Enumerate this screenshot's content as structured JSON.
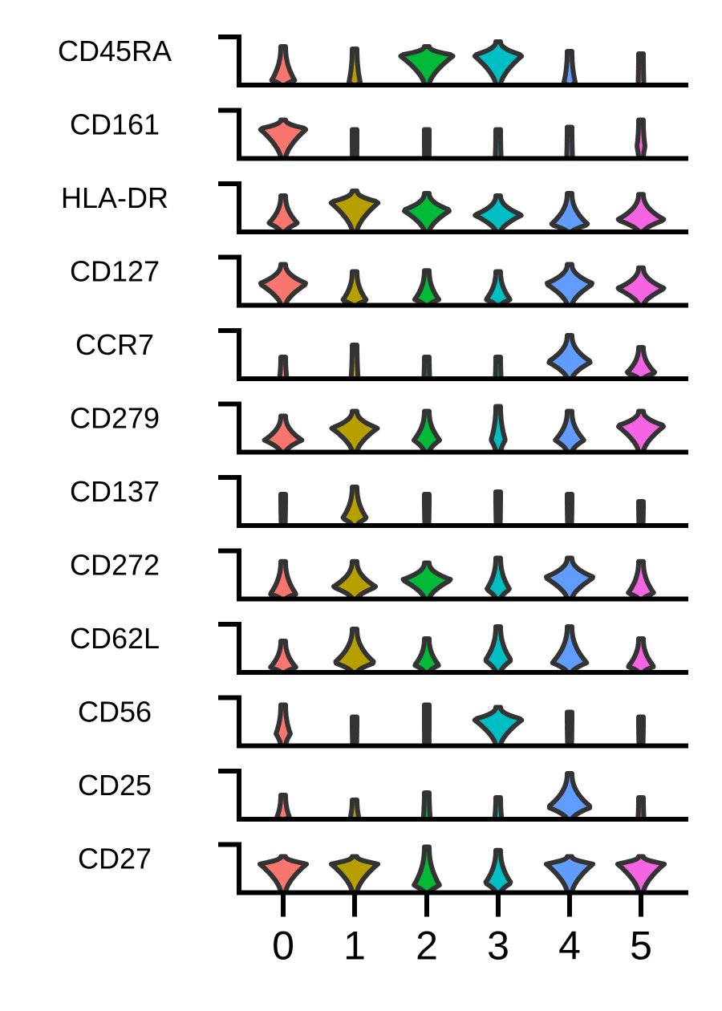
{
  "chart_data": {
    "type": "stacked-violin",
    "categories": [
      "0",
      "1",
      "2",
      "3",
      "4",
      "5"
    ],
    "colors": [
      "#F8766D",
      "#B79F00",
      "#00BA38",
      "#00BFC4",
      "#619CFF",
      "#F564E3"
    ],
    "genes": [
      {
        "name": "CD45RA",
        "violins": [
          {
            "w": 0.4,
            "peak": 0.1,
            "top": 0.8
          },
          {
            "w": 0.2,
            "peak": 0.05,
            "top": 0.75
          },
          {
            "w": 0.95,
            "peak": 0.62,
            "top": 0.8
          },
          {
            "w": 0.85,
            "peak": 0.62,
            "top": 0.9
          },
          {
            "w": 0.2,
            "peak": 0.05,
            "top": 0.7
          },
          {
            "w": 0.1,
            "peak": 0.03,
            "top": 0.65
          }
        ]
      },
      {
        "name": "CD161",
        "violins": [
          {
            "w": 0.82,
            "peak": 0.62,
            "top": 0.8
          },
          {
            "w": 0.08,
            "peak": 0.03,
            "top": 0.6
          },
          {
            "w": 0.08,
            "peak": 0.03,
            "top": 0.6
          },
          {
            "w": 0.1,
            "peak": 0.04,
            "top": 0.6
          },
          {
            "w": 0.1,
            "peak": 0.04,
            "top": 0.65
          },
          {
            "w": 0.14,
            "peak": 0.25,
            "top": 0.8
          }
        ]
      },
      {
        "name": "HLA-DR",
        "violins": [
          {
            "w": 0.5,
            "peak": 0.18,
            "top": 0.75
          },
          {
            "w": 0.85,
            "peak": 0.62,
            "top": 0.85
          },
          {
            "w": 0.82,
            "peak": 0.45,
            "top": 0.8
          },
          {
            "w": 0.82,
            "peak": 0.35,
            "top": 0.75
          },
          {
            "w": 0.65,
            "peak": 0.15,
            "top": 0.8
          },
          {
            "w": 0.82,
            "peak": 0.25,
            "top": 0.78
          }
        ]
      },
      {
        "name": "CD127",
        "violins": [
          {
            "w": 0.82,
            "peak": 0.45,
            "top": 0.85
          },
          {
            "w": 0.42,
            "peak": 0.1,
            "top": 0.7
          },
          {
            "w": 0.42,
            "peak": 0.12,
            "top": 0.72
          },
          {
            "w": 0.42,
            "peak": 0.12,
            "top": 0.7
          },
          {
            "w": 0.82,
            "peak": 0.45,
            "top": 0.85
          },
          {
            "w": 0.82,
            "peak": 0.35,
            "top": 0.78
          }
        ]
      },
      {
        "name": "CCR7",
        "violins": [
          {
            "w": 0.12,
            "peak": 0.04,
            "top": 0.45
          },
          {
            "w": 0.12,
            "peak": 0.04,
            "top": 0.7
          },
          {
            "w": 0.1,
            "peak": 0.04,
            "top": 0.45
          },
          {
            "w": 0.1,
            "peak": 0.04,
            "top": 0.45
          },
          {
            "w": 0.75,
            "peak": 0.35,
            "top": 0.9
          },
          {
            "w": 0.5,
            "peak": 0.12,
            "top": 0.65
          }
        ]
      },
      {
        "name": "CD279",
        "violins": [
          {
            "w": 0.65,
            "peak": 0.25,
            "top": 0.75
          },
          {
            "w": 0.8,
            "peak": 0.5,
            "top": 0.85
          },
          {
            "w": 0.45,
            "peak": 0.25,
            "top": 0.85
          },
          {
            "w": 0.25,
            "peak": 0.25,
            "top": 0.95
          },
          {
            "w": 0.5,
            "peak": 0.25,
            "top": 0.85
          },
          {
            "w": 0.82,
            "peak": 0.55,
            "top": 0.85
          }
        ]
      },
      {
        "name": "CD137",
        "violins": [
          {
            "w": 0.06,
            "peak": 0.03,
            "top": 0.65
          },
          {
            "w": 0.42,
            "peak": 0.15,
            "top": 0.8
          },
          {
            "w": 0.06,
            "peak": 0.03,
            "top": 0.65
          },
          {
            "w": 0.06,
            "peak": 0.03,
            "top": 0.7
          },
          {
            "w": 0.06,
            "peak": 0.03,
            "top": 0.65
          },
          {
            "w": 0.06,
            "peak": 0.03,
            "top": 0.5
          }
        ]
      },
      {
        "name": "CD272",
        "violins": [
          {
            "w": 0.45,
            "peak": 0.1,
            "top": 0.78
          },
          {
            "w": 0.75,
            "peak": 0.25,
            "top": 0.78
          },
          {
            "w": 0.85,
            "peak": 0.4,
            "top": 0.75
          },
          {
            "w": 0.4,
            "peak": 0.2,
            "top": 0.85
          },
          {
            "w": 0.85,
            "peak": 0.45,
            "top": 0.85
          },
          {
            "w": 0.45,
            "peak": 0.12,
            "top": 0.78
          }
        ]
      },
      {
        "name": "CD62L",
        "violins": [
          {
            "w": 0.45,
            "peak": 0.1,
            "top": 0.65
          },
          {
            "w": 0.7,
            "peak": 0.2,
            "top": 0.9
          },
          {
            "w": 0.42,
            "peak": 0.15,
            "top": 0.7
          },
          {
            "w": 0.45,
            "peak": 0.25,
            "top": 0.95
          },
          {
            "w": 0.6,
            "peak": 0.2,
            "top": 0.95
          },
          {
            "w": 0.45,
            "peak": 0.12,
            "top": 0.7
          }
        ]
      },
      {
        "name": "CD56",
        "violins": [
          {
            "w": 0.25,
            "peak": 0.25,
            "top": 0.85
          },
          {
            "w": 0.06,
            "peak": 0.03,
            "top": 0.6
          },
          {
            "w": 0.08,
            "peak": 0.03,
            "top": 0.85
          },
          {
            "w": 0.85,
            "peak": 0.55,
            "top": 0.8
          },
          {
            "w": 0.06,
            "peak": 0.03,
            "top": 0.7
          },
          {
            "w": 0.06,
            "peak": 0.03,
            "top": 0.6
          }
        ]
      },
      {
        "name": "CD25",
        "violins": [
          {
            "w": 0.22,
            "peak": 0.04,
            "top": 0.5
          },
          {
            "w": 0.15,
            "peak": 0.03,
            "top": 0.4
          },
          {
            "w": 0.12,
            "peak": 0.03,
            "top": 0.55
          },
          {
            "w": 0.12,
            "peak": 0.03,
            "top": 0.45
          },
          {
            "w": 0.75,
            "peak": 0.25,
            "top": 0.95
          },
          {
            "w": 0.1,
            "peak": 0.03,
            "top": 0.45
          }
        ]
      },
      {
        "name": "CD27",
        "violins": [
          {
            "w": 0.82,
            "peak": 0.6,
            "top": 0.75
          },
          {
            "w": 0.82,
            "peak": 0.6,
            "top": 0.75
          },
          {
            "w": 0.45,
            "peak": 0.15,
            "top": 0.95
          },
          {
            "w": 0.45,
            "peak": 0.2,
            "top": 0.88
          },
          {
            "w": 0.82,
            "peak": 0.6,
            "top": 0.75
          },
          {
            "w": 0.82,
            "peak": 0.6,
            "top": 0.75
          }
        ]
      }
    ]
  }
}
